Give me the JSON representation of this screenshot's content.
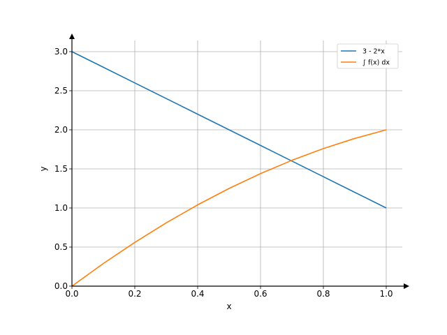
{
  "chart_data": {
    "type": "line",
    "xlabel": "x",
    "ylabel": "y",
    "xlim": [
      0,
      1.05
    ],
    "ylim": [
      0,
      3.15
    ],
    "x_ticks": [
      0.0,
      0.2,
      0.4,
      0.6,
      0.8,
      1.0
    ],
    "x_tick_labels": [
      "0.0",
      "0.2",
      "0.4",
      "0.6",
      "0.8",
      "1.0"
    ],
    "y_ticks": [
      0.0,
      0.5,
      1.0,
      1.5,
      2.0,
      2.5,
      3.0
    ],
    "y_tick_labels": [
      "0.0",
      "0.5",
      "1.0",
      "1.5",
      "2.0",
      "2.5",
      "3.0"
    ],
    "grid": true,
    "legend_position": "top-right",
    "series": [
      {
        "name": "3 - 2*x",
        "color": "#1f77b4",
        "x": [
          0.0,
          0.1,
          0.2,
          0.3,
          0.4,
          0.5,
          0.6,
          0.7,
          0.8,
          0.9,
          1.0
        ],
        "y": [
          3.0,
          2.8,
          2.6,
          2.4,
          2.2,
          2.0,
          1.8,
          1.6,
          1.4,
          1.2,
          1.0
        ]
      },
      {
        "name": "∫ f(x) dx",
        "color": "#ff7f0e",
        "x": [
          0.0,
          0.1,
          0.2,
          0.3,
          0.4,
          0.5,
          0.6,
          0.7,
          0.8,
          0.9,
          1.0
        ],
        "y": [
          0.0,
          0.29,
          0.56,
          0.81,
          1.04,
          1.25,
          1.44,
          1.61,
          1.76,
          1.89,
          2.0
        ]
      }
    ]
  }
}
